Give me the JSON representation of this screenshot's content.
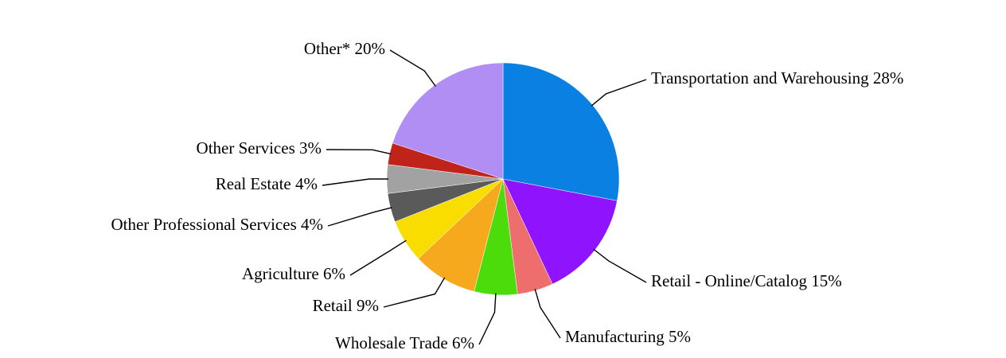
{
  "chart_data": {
    "type": "pie",
    "categories": [
      "Transportation and Warehousing",
      "Retail - Online/Catalog",
      "Manufacturing",
      "Wholesale Trade",
      "Retail",
      "Agriculture",
      "Other Professional Services",
      "Real Estate",
      "Other Services",
      "Other*"
    ],
    "values": [
      28,
      15,
      5,
      6,
      9,
      6,
      4,
      4,
      3,
      20
    ],
    "value_labels": [
      "28%",
      "15%",
      "5%",
      "6%",
      "9%",
      "6%",
      "4%",
      "4%",
      "3%",
      "20%"
    ],
    "colors": [
      "#0a80e2",
      "#9013fe",
      "#ee6e6d",
      "#4ddc0b",
      "#f6a91c",
      "#f9dd01",
      "#5a5a5a",
      "#a2a2a2",
      "#c0231a",
      "#b18ef4"
    ]
  }
}
